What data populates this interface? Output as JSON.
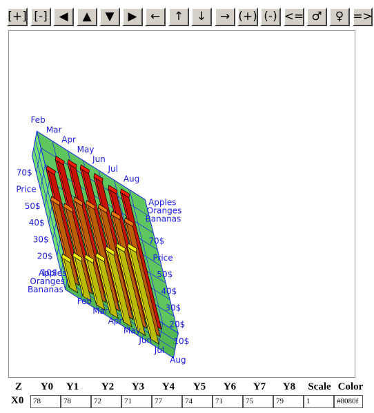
{
  "toolbar": {
    "buttons": [
      "[+]",
      "[-]",
      "◀",
      "▲",
      "▼",
      "▶",
      "←",
      "↑",
      "↓",
      "→",
      "(+)",
      "(-)",
      "<=",
      "♂",
      "♀",
      "=>"
    ]
  },
  "chart_data": {
    "type": "bar",
    "x_categories": [
      "Feb",
      "Mar",
      "Apr",
      "May",
      "Jun",
      "Jul",
      "Aug"
    ],
    "z_categories": [
      "Apples",
      "Oranges",
      "Bananas"
    ],
    "axis_label": "Price",
    "y_ticks": [
      "10$",
      "20$",
      "30$",
      "40$",
      "50$",
      "70$"
    ],
    "ylim": [
      0,
      80
    ],
    "series": [
      {
        "name": "Apples",
        "color": "#ff1a00",
        "values": [
          62,
          73,
          76,
          78,
          78,
          76,
          79
        ]
      },
      {
        "name": "Oranges",
        "color": "#f07800",
        "values": [
          48,
          49,
          58,
          61,
          64,
          65,
          66
        ]
      },
      {
        "name": "Bananas",
        "color": "#f0f000",
        "values": [
          18,
          24,
          28,
          34,
          43,
          50,
          55
        ]
      }
    ],
    "grid": true,
    "colors": {
      "wall": "#72e272",
      "floor": "#52b852",
      "gridline": "#2233dd",
      "label": "#1a1ae6"
    }
  },
  "table": {
    "headers": [
      "Z",
      "Y0",
      "Y1",
      "Y2",
      "Y3",
      "Y4",
      "Y5",
      "Y6",
      "Y7",
      "Y8",
      "Scale",
      "Color"
    ],
    "row": {
      "label": "X0",
      "values": [
        "78",
        "78",
        "72",
        "71",
        "77",
        "74",
        "71",
        "75",
        "79",
        "1",
        "#8080f"
      ]
    }
  }
}
